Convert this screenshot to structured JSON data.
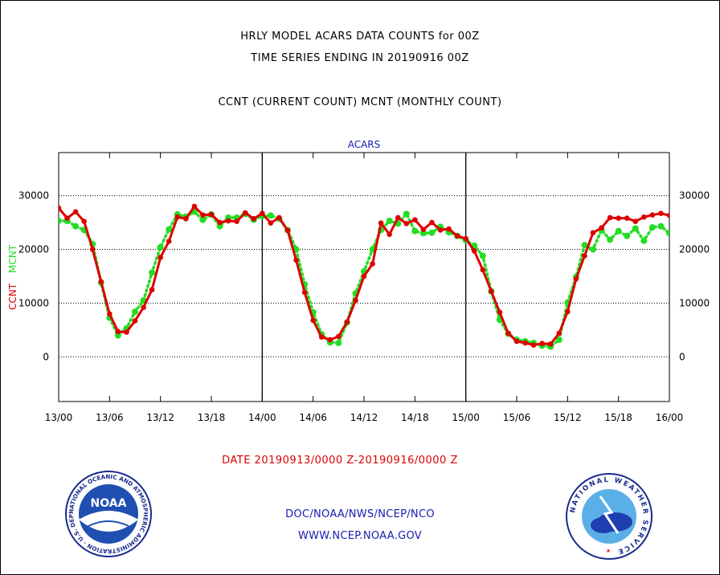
{
  "header": {
    "line1": "HRLY MODEL ACARS DATA COUNTS for 00Z",
    "line2": "TIME SERIES ENDING IN 20190916 00Z",
    "line3": "CCNT (CURRENT COUNT) MCNT (MONTHLY COUNT)"
  },
  "footer": {
    "date_range": "DATE 20190913/0000 Z-20190916/0000 Z",
    "org": "DOC/NOAA/NWS/NCEP/NCO",
    "url": "WWW.NCEP.NOAA.GOV"
  },
  "logos": {
    "left_text": "NOAA",
    "left_ring_text": "NATIONAL OCEANIC AND ATMOSPHERIC ADMINISTRATION · U.S. DEPARTMENT OF COMMERCE ·",
    "right_ring_text": "NATIONAL WEATHER SERVICE"
  },
  "colors": {
    "ccnt": "#dd0000",
    "mcnt": "#22dd22",
    "title": "#1a1ab0",
    "grid": "#000000"
  },
  "chart_data": {
    "type": "line",
    "title": "ACARS",
    "ylabel_left": [
      "CCNT",
      "MCNT"
    ],
    "ylim": [
      -8300,
      38000
    ],
    "yticks": [
      0,
      10000,
      20000,
      30000
    ],
    "ytick_labels": [
      "0",
      "10000",
      "20000",
      "30000"
    ],
    "xlim": [
      0,
      72
    ],
    "xticks": [
      0,
      6,
      12,
      18,
      24,
      30,
      36,
      42,
      48,
      54,
      60,
      66,
      72
    ],
    "xtick_labels": [
      "13/00",
      "13/06",
      "13/12",
      "13/18",
      "14/00",
      "14/06",
      "14/12",
      "14/18",
      "15/00",
      "15/06",
      "15/12",
      "15/18",
      "16/00"
    ],
    "day_dividers": [
      24,
      48
    ],
    "grid": true,
    "series": [
      {
        "name": "CCNT",
        "color": "#dd0000",
        "style": "solid",
        "x": [
          0,
          1,
          2,
          3,
          4,
          5,
          6,
          7,
          8,
          9,
          10,
          11,
          12,
          13,
          14,
          15,
          16,
          17,
          18,
          19,
          20,
          21,
          22,
          23,
          24,
          25,
          26,
          27,
          28,
          29,
          30,
          31,
          32,
          33,
          34,
          35,
          36,
          37,
          38,
          39,
          40,
          41,
          42,
          43,
          44,
          45,
          46,
          47,
          48,
          49,
          50,
          51,
          52,
          53,
          54,
          55,
          56,
          57,
          58,
          59,
          60,
          61,
          62,
          63,
          64,
          65,
          66,
          67,
          68,
          69,
          70,
          71,
          72
        ],
        "values": [
          27700,
          25800,
          27000,
          25200,
          20000,
          14000,
          8000,
          4700,
          4600,
          6700,
          9200,
          12500,
          18500,
          21500,
          26000,
          25700,
          28000,
          26400,
          26500,
          25000,
          25300,
          25200,
          26800,
          25700,
          26700,
          24900,
          25900,
          23500,
          18000,
          12000,
          6800,
          3700,
          3200,
          3800,
          6500,
          10500,
          15000,
          17300,
          24900,
          22800,
          25900,
          24800,
          25500,
          23700,
          25000,
          23600,
          23800,
          22500,
          22000,
          19700,
          16200,
          12200,
          8300,
          4400,
          2900,
          2600,
          2200,
          2500,
          2400,
          4400,
          8400,
          14500,
          18800,
          23100,
          24000,
          25900,
          25800,
          25800,
          25200,
          26000,
          26400,
          26700,
          26300
        ]
      },
      {
        "name": "MCNT",
        "color": "#22dd22",
        "style": "dotted",
        "x": [
          0,
          1,
          2,
          3,
          4,
          5,
          6,
          7,
          8,
          9,
          10,
          11,
          12,
          13,
          14,
          15,
          16,
          17,
          18,
          19,
          20,
          21,
          22,
          23,
          24,
          25,
          26,
          27,
          28,
          29,
          30,
          31,
          32,
          33,
          34,
          35,
          36,
          37,
          38,
          39,
          40,
          41,
          42,
          43,
          44,
          45,
          46,
          47,
          48,
          49,
          50,
          51,
          52,
          53,
          54,
          55,
          56,
          57,
          58,
          59,
          60,
          61,
          62,
          63,
          64,
          65,
          66,
          67,
          68,
          69,
          70,
          71,
          72
        ],
        "values": [
          25300,
          25300,
          24300,
          23600,
          21000,
          13800,
          7300,
          4000,
          5300,
          8400,
          10500,
          15700,
          20400,
          23700,
          26500,
          26100,
          27000,
          25500,
          26500,
          24300,
          25900,
          25900,
          26600,
          25500,
          26200,
          26300,
          25700,
          23600,
          20000,
          13500,
          8300,
          4200,
          2700,
          2600,
          6400,
          11800,
          15900,
          20000,
          23600,
          25300,
          24800,
          26600,
          23400,
          23000,
          23100,
          24200,
          23200,
          22500,
          21700,
          20700,
          18800,
          12200,
          6900,
          4300,
          3200,
          2900,
          2600,
          2100,
          1900,
          3200,
          10100,
          14900,
          20800,
          20000,
          23600,
          21800,
          23400,
          22500,
          23900,
          21600,
          24100,
          24300,
          23000
        ]
      }
    ]
  }
}
